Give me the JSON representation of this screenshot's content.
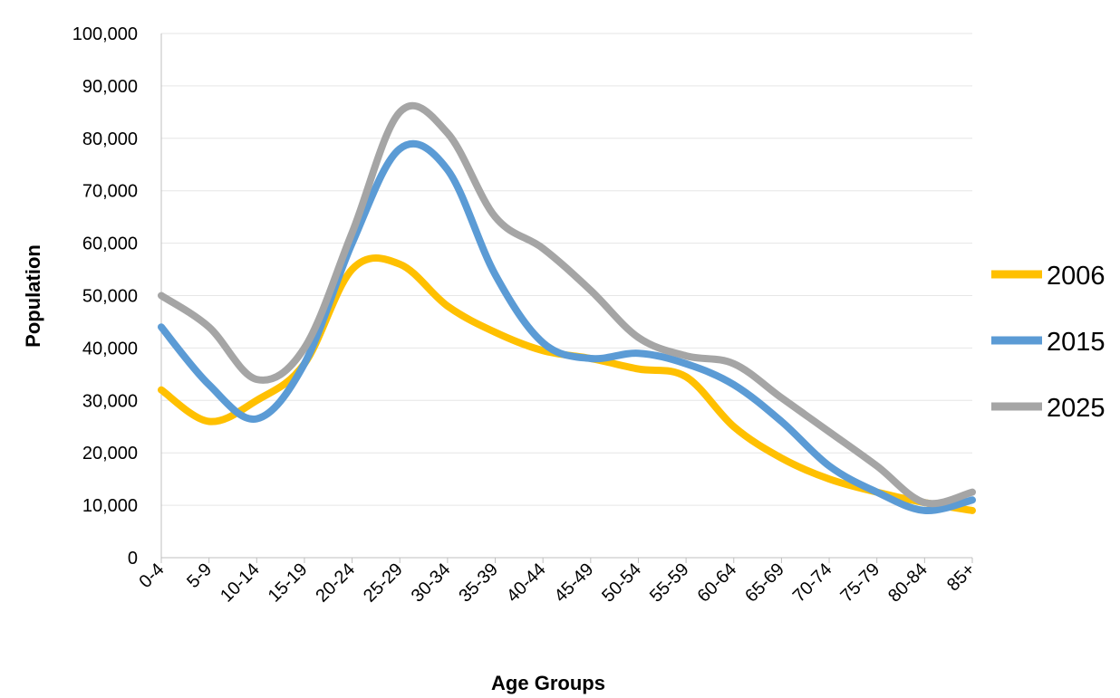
{
  "chart_data": {
    "type": "line",
    "title": "",
    "xlabel": "Age Groups",
    "ylabel": "Population",
    "ylim": [
      0,
      100000
    ],
    "y_ticks": [
      "0",
      "10,000",
      "20,000",
      "30,000",
      "40,000",
      "50,000",
      "60,000",
      "70,000",
      "80,000",
      "90,000",
      "100,000"
    ],
    "y_tick_values": [
      0,
      10000,
      20000,
      30000,
      40000,
      50000,
      60000,
      70000,
      80000,
      90000,
      100000
    ],
    "categories": [
      "0-4",
      "5-9",
      "10-14",
      "15-19",
      "20-24",
      "25-29",
      "30-34",
      "35-39",
      "40-44",
      "45-49",
      "50-54",
      "55-59",
      "60-64",
      "65-69",
      "70-74",
      "75-79",
      "80-84",
      "85+"
    ],
    "smoothed": true,
    "grid": true,
    "legend_position": "right",
    "series": [
      {
        "name": "2006",
        "color": "#FFC000",
        "values": [
          32000,
          26000,
          30000,
          37000,
          55000,
          56000,
          48000,
          43000,
          39500,
          38000,
          36000,
          34500,
          25000,
          19000,
          15000,
          12500,
          10500,
          9000
        ]
      },
      {
        "name": "2015",
        "color": "#5B9BD5",
        "values": [
          44000,
          33000,
          26500,
          37000,
          60000,
          78000,
          74000,
          54000,
          41000,
          38000,
          39000,
          37000,
          33000,
          26000,
          17500,
          12500,
          9000,
          11000
        ]
      },
      {
        "name": "2025",
        "color": "#A5A5A5",
        "values": [
          50000,
          44000,
          34000,
          40000,
          62000,
          85000,
          81000,
          65000,
          59000,
          51000,
          42000,
          38500,
          37000,
          30500,
          24000,
          17500,
          10500,
          12500
        ]
      }
    ]
  }
}
